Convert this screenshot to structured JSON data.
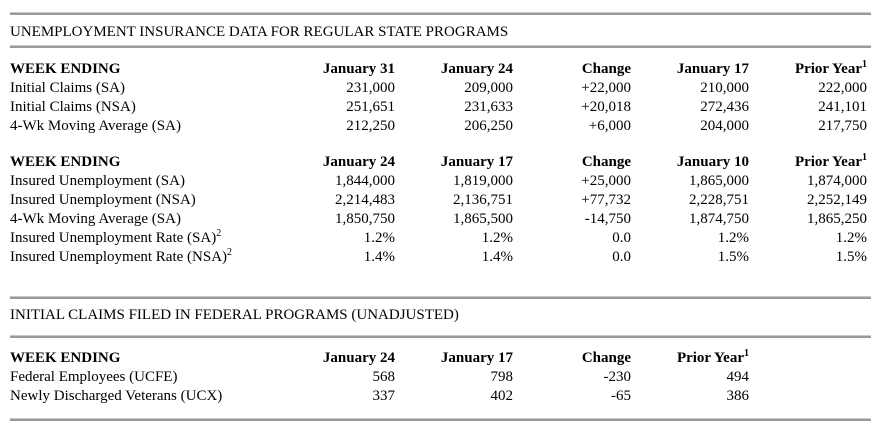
{
  "sections": [
    {
      "title": "UNEMPLOYMENT INSURANCE DATA FOR REGULAR STATE PROGRAMS"
    },
    {
      "title": "INITIAL CLAIMS FILED IN FEDERAL PROGRAMS (UNADJUSTED)"
    }
  ],
  "tables": [
    {
      "name": "regular-state-initial-claims",
      "headers": [
        {
          "text": "WEEK ENDING"
        },
        {
          "text": "January 31"
        },
        {
          "text": "January 24"
        },
        {
          "text": "Change"
        },
        {
          "text": "January 17"
        },
        {
          "text": "Prior Year",
          "sup": "1"
        }
      ],
      "rows": [
        {
          "cells": [
            {
              "text": "Initial Claims (SA)"
            },
            {
              "text": "231,000"
            },
            {
              "text": "209,000"
            },
            {
              "text": "+22,000"
            },
            {
              "text": "210,000"
            },
            {
              "text": "222,000"
            }
          ]
        },
        {
          "cells": [
            {
              "text": "Initial Claims (NSA)"
            },
            {
              "text": "251,651"
            },
            {
              "text": "231,633"
            },
            {
              "text": "+20,018"
            },
            {
              "text": "272,436"
            },
            {
              "text": "241,101"
            }
          ]
        },
        {
          "cells": [
            {
              "text": "4-Wk Moving Average (SA)"
            },
            {
              "text": "212,250"
            },
            {
              "text": "206,250"
            },
            {
              "text": "+6,000"
            },
            {
              "text": "204,000"
            },
            {
              "text": "217,750"
            }
          ]
        }
      ]
    },
    {
      "name": "regular-state-insured-unemployment",
      "headers": [
        {
          "text": "WEEK ENDING"
        },
        {
          "text": "January 24"
        },
        {
          "text": "January 17"
        },
        {
          "text": "Change"
        },
        {
          "text": "January 10"
        },
        {
          "text": "Prior Year",
          "sup": "1"
        }
      ],
      "rows": [
        {
          "cells": [
            {
              "text": "Insured Unemployment (SA)"
            },
            {
              "text": "1,844,000"
            },
            {
              "text": "1,819,000"
            },
            {
              "text": "+25,000"
            },
            {
              "text": "1,865,000"
            },
            {
              "text": "1,874,000"
            }
          ]
        },
        {
          "cells": [
            {
              "text": "Insured Unemployment (NSA)"
            },
            {
              "text": "2,214,483"
            },
            {
              "text": "2,136,751"
            },
            {
              "text": "+77,732"
            },
            {
              "text": "2,228,751"
            },
            {
              "text": "2,252,149"
            }
          ]
        },
        {
          "cells": [
            {
              "text": "4-Wk Moving Average (SA)"
            },
            {
              "text": "1,850,750"
            },
            {
              "text": "1,865,500"
            },
            {
              "text": "-14,750"
            },
            {
              "text": "1,874,750"
            },
            {
              "text": "1,865,250"
            }
          ]
        },
        {
          "cells": [
            {
              "text": "Insured Unemployment Rate (SA)",
              "sup": "2"
            },
            {
              "text": "1.2%"
            },
            {
              "text": "1.2%"
            },
            {
              "text": "0.0"
            },
            {
              "text": "1.2%"
            },
            {
              "text": "1.2%"
            }
          ]
        },
        {
          "cells": [
            {
              "text": "Insured Unemployment Rate (NSA)",
              "sup": "2"
            },
            {
              "text": "1.4%"
            },
            {
              "text": "1.4%"
            },
            {
              "text": "0.0"
            },
            {
              "text": "1.5%"
            },
            {
              "text": "1.5%"
            }
          ]
        }
      ]
    },
    {
      "name": "federal-programs-initial-claims",
      "headers": [
        {
          "text": "WEEK ENDING"
        },
        {
          "text": "January 24"
        },
        {
          "text": "January 17"
        },
        {
          "text": "Change"
        },
        {
          "text": "Prior Year",
          "sup": "1"
        }
      ],
      "rows": [
        {
          "cells": [
            {
              "text": "Federal Employees (UCFE)"
            },
            {
              "text": "568"
            },
            {
              "text": "798"
            },
            {
              "text": "-230"
            },
            {
              "text": "494"
            }
          ]
        },
        {
          "cells": [
            {
              "text": "Newly Discharged Veterans (UCX)"
            },
            {
              "text": "337"
            },
            {
              "text": "402"
            },
            {
              "text": "-65"
            },
            {
              "text": "386"
            }
          ]
        }
      ]
    }
  ],
  "colors": {
    "background": "#ffffff",
    "text": "#000000",
    "rule_light": "#c9c9c9",
    "rule_dark": "#9a9a9a"
  }
}
